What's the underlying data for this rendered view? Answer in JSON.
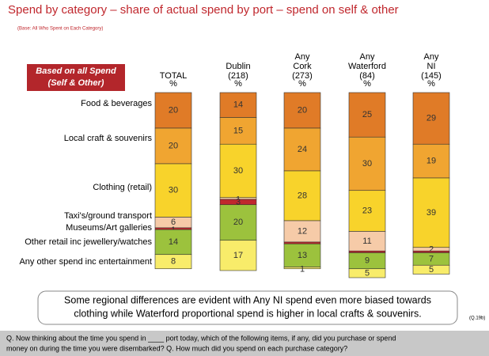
{
  "chart_data": {
    "type": "stacked_bar_100",
    "title": "Spend by category – share of actual spend by port – spend on self & other",
    "subtitle": "(Base: All Who Spent on Each Category)",
    "badge": [
      "Based on all Spend",
      "(Self & Other)"
    ],
    "categories": [
      [
        "TOTAL"
      ],
      [
        "Dublin",
        "(218)"
      ],
      [
        "Any",
        "Cork",
        "(273)"
      ],
      [
        "Any",
        "Waterford",
        "(84)"
      ],
      [
        "Any",
        "NI",
        "(145)"
      ]
    ],
    "unit_label": "%",
    "ylim": [
      0,
      100
    ],
    "series": [
      {
        "name": "Food & beverages",
        "color": "#e07b27",
        "values": [
          20,
          14,
          20,
          25,
          29
        ],
        "value_labels": [
          "20",
          "14",
          "20",
          "25",
          "29"
        ]
      },
      {
        "name": "Local craft & souvenirs",
        "color": "#f0a531",
        "values": [
          20,
          15,
          24,
          30,
          19
        ],
        "value_labels": [
          "20",
          "15",
          "24",
          "30",
          "19"
        ]
      },
      {
        "name": "Clothing (retail)",
        "color": "#f8d32b",
        "values": [
          30,
          30,
          28,
          23,
          39
        ],
        "value_labels": [
          "30",
          "30",
          "28",
          "23",
          "39"
        ]
      },
      {
        "name": "Taxi's/ground transport",
        "color": "#f6cba8",
        "values": [
          6,
          1,
          12,
          11,
          2
        ],
        "value_labels": [
          "6",
          "1",
          "12",
          "11",
          "2"
        ]
      },
      {
        "name": "Museums/Art galleries",
        "color": "#c0272d",
        "values": [
          1,
          3,
          1,
          1,
          1
        ],
        "value_labels": [
          "1",
          "3",
          null,
          null,
          null
        ]
      },
      {
        "name": "Other retail inc jewellery/watches",
        "color": "#9cc23d",
        "values": [
          14,
          20,
          13,
          9,
          7
        ],
        "value_labels": [
          "14",
          "20",
          "13",
          "9",
          "7"
        ]
      },
      {
        "name": "Any other spend inc entertainment",
        "color": "#f8ec6a",
        "values": [
          8,
          17,
          1,
          5,
          5
        ],
        "value_labels": [
          "8",
          "17",
          "1",
          "5",
          "5"
        ]
      }
    ],
    "annotation": [
      "Some regional differences are evident with Any NI spend even more biased towards",
      "clothing while Waterford proportional spend is higher in local crafts & souvenirs."
    ],
    "source_note": "(Q.19b)",
    "footer": [
      "Q. Now thinking about the time you spend in ____ port today, which of the following items, if any, did you purchase or spend",
      "money on during the time you were disembarked? Q. How much did you spend on each purchase category?"
    ]
  }
}
